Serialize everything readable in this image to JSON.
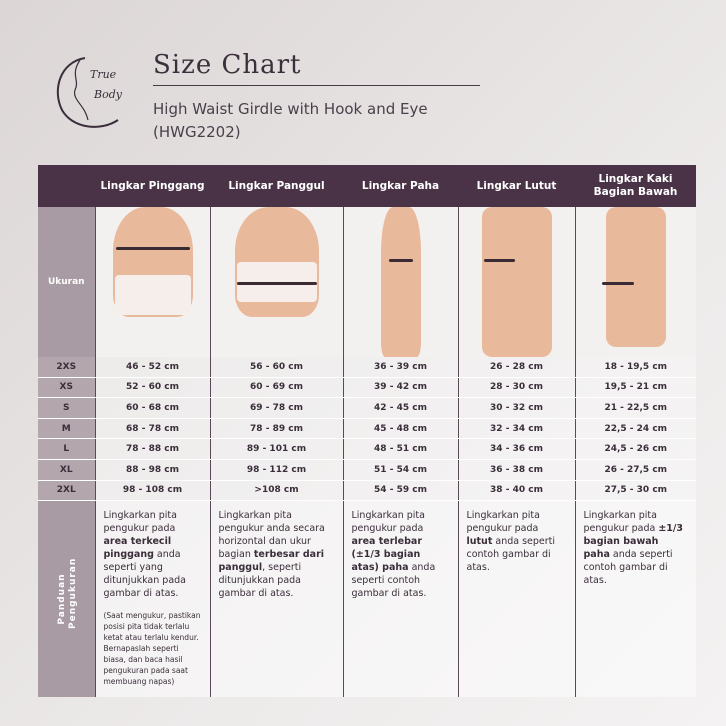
{
  "brand": {
    "logo_text": "True Body"
  },
  "title": "Size Chart",
  "subtitle": "High Waist Girdle with Hook and Eye",
  "code": "(HWG2202)",
  "colors": {
    "header": "#4a3347",
    "label": "#a99ba3"
  },
  "columns": [
    "Lingkar Pinggang",
    "Lingkar Panggul",
    "Lingkar Paha",
    "Lingkar Lutut",
    "Lingkar Kaki Bagian Bawah"
  ],
  "image_row_label": "Ukuran",
  "sizes": [
    {
      "size": "2XS",
      "values": [
        "46 - 52 cm",
        "56 - 60 cm",
        "36 - 39 cm",
        "26 - 28 cm",
        "18 - 19,5 cm"
      ]
    },
    {
      "size": "XS",
      "values": [
        "52 - 60 cm",
        "60 - 69 cm",
        "39 - 42 cm",
        "28 - 30 cm",
        "19,5 - 21 cm"
      ]
    },
    {
      "size": "S",
      "values": [
        "60 - 68 cm",
        "69 - 78 cm",
        "42 - 45 cm",
        "30 - 32 cm",
        "21 - 22,5 cm"
      ]
    },
    {
      "size": "M",
      "values": [
        "68 - 78 cm",
        "78 - 89 cm",
        "45 - 48 cm",
        "32 - 34 cm",
        "22,5 - 24 cm"
      ]
    },
    {
      "size": "L",
      "values": [
        "78 - 88 cm",
        "89 - 101 cm",
        "48 - 51 cm",
        "34 - 36 cm",
        "24,5 - 26 cm"
      ]
    },
    {
      "size": "XL",
      "values": [
        "88 - 98 cm",
        "98 - 112 cm",
        "51 - 54 cm",
        "36 - 38 cm",
        "26 - 27,5 cm"
      ]
    },
    {
      "size": "2XL",
      "values": [
        "98 - 108 cm",
        ">108 cm",
        "54 - 59 cm",
        "38 - 40 cm",
        "27,5 - 30 cm"
      ]
    }
  ],
  "guide_label": "Panduan Pengukuran",
  "guide": [
    [
      {
        "t": "Lingkarkan pita pengukur pada "
      },
      {
        "t": "area terkecil pinggang",
        "b": true
      },
      {
        "t": " anda seperti yang ditunjukkan pada gambar di atas."
      }
    ],
    [
      {
        "t": "Lingkarkan pita pengukur anda secara horizontal dan ukur bagian "
      },
      {
        "t": "terbesar dari panggul",
        "b": true
      },
      {
        "t": ", seperti ditunjukkan pada gambar di atas."
      }
    ],
    [
      {
        "t": "Lingkarkan pita pengukur pada "
      },
      {
        "t": "area terlebar (±1/3 bagian atas) paha",
        "b": true
      },
      {
        "t": " anda seperti contoh gambar di atas."
      }
    ],
    [
      {
        "t": "Lingkarkan pita pengukur pada "
      },
      {
        "t": "lutut",
        "b": true
      },
      {
        "t": " anda seperti contoh gambar di atas."
      }
    ],
    [
      {
        "t": "Lingkarkan pita pengukur pada "
      },
      {
        "t": "±1/3 bagian bawah paha",
        "b": true
      },
      {
        "t": " anda seperti contoh gambar di atas."
      }
    ]
  ],
  "guide_note": "(Saat mengukur, pastikan posisi pita tidak terlalu ketat atau terlalu kendur. Bernapaslah seperti biasa, dan baca hasil pengukuran pada saat membuang napas)"
}
